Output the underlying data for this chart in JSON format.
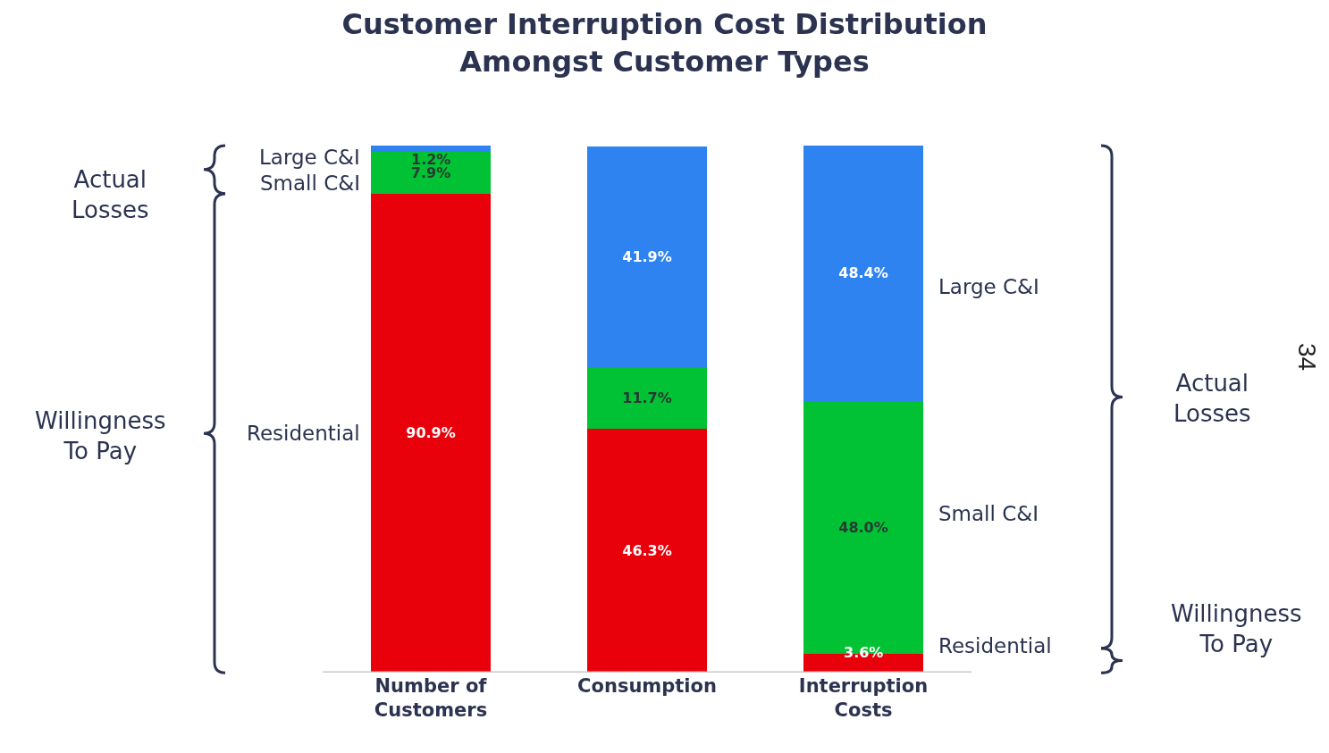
{
  "chart_data": {
    "type": "bar",
    "title": "Customer Interruption Cost Distribution\nAmongst Customer Types",
    "categories": [
      "Number of\nCustomers",
      "Consumption",
      "Interruption\nCosts"
    ],
    "stacked": true,
    "legend": false,
    "series": [
      {
        "name": "Residential",
        "color": "#e8000b",
        "values": [
          90.9,
          46.3,
          3.6
        ],
        "value_labels": [
          "90.9%",
          "46.3%",
          "3.6%"
        ]
      },
      {
        "name": "Small C&I",
        "color": "#00c234",
        "values": [
          7.9,
          11.7,
          48.0
        ],
        "value_labels": [
          "7.9%",
          "11.7%",
          "48.0%"
        ]
      },
      {
        "name": "Large C&I",
        "color": "#2e83f0",
        "values": [
          1.2,
          41.9,
          48.4
        ],
        "value_labels": [
          "1.2%",
          "41.9%",
          "48.4%"
        ]
      }
    ],
    "annotations": [
      "Actual\nLosses",
      "Willingness\nTo Pay",
      "Actual\nLosses",
      "Willingness\nTo Pay",
      "34"
    ]
  }
}
